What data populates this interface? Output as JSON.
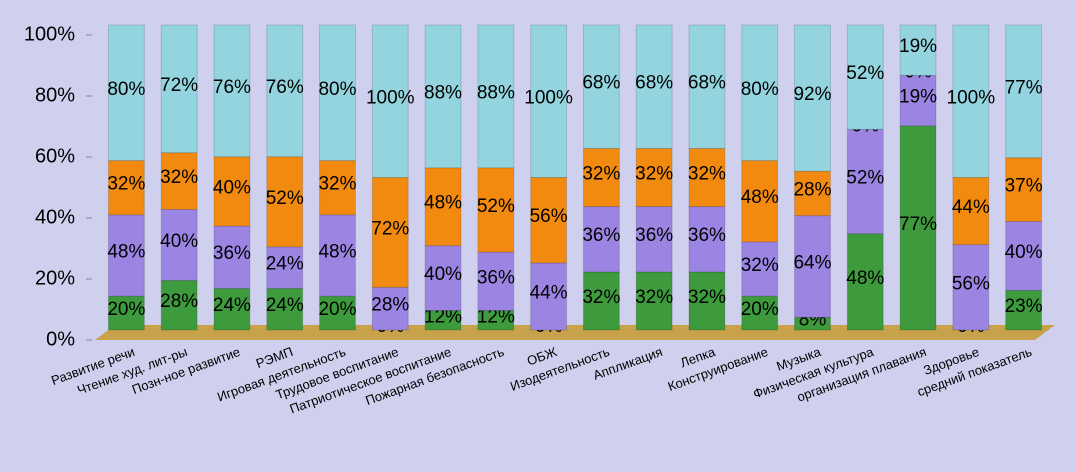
{
  "chart_data": {
    "type": "bar",
    "stacking": "percent",
    "categories": [
      "Развитие речи",
      "Чтение худ. лит-ры",
      "Позн-ное развитие",
      "РЭМП",
      "Игровая деятельность",
      "Трудовое воспитание",
      "Патриотическое воспитание",
      "Пожарная безопасность",
      "ОБЖ",
      "Изодеятельность",
      "Аппликация",
      "Лепка",
      "Конструирование",
      "Музыка",
      "Физическая культура",
      "организация плавания",
      "Здоровье",
      "средний показатель"
    ],
    "series": [
      {
        "color": "#3d9a3d",
        "values": [
          20,
          28,
          24,
          24,
          20,
          0,
          12,
          12,
          0,
          32,
          32,
          32,
          20,
          8,
          48,
          77,
          0,
          23
        ],
        "value_labels": [
          "20%",
          "28%",
          "24%",
          "24%",
          "20%",
          "0%",
          "12%",
          "12%",
          "0%",
          "32%",
          "32%",
          "32%",
          "20%",
          "8%",
          "48%",
          "77%",
          "0%",
          "23%"
        ]
      },
      {
        "color": "#9b84e2",
        "values": [
          48,
          40,
          36,
          24,
          48,
          28,
          40,
          36,
          44,
          36,
          36,
          36,
          32,
          64,
          52,
          19,
          56,
          40
        ],
        "value_labels": [
          "48%",
          "40%",
          "36%",
          "24%",
          "48%",
          "28%",
          "40%",
          "36%",
          "44%",
          "36%",
          "36%",
          "36%",
          "32%",
          "64%",
          "52%",
          "19%",
          "56%",
          "40%"
        ]
      },
      {
        "color": "#f28a10",
        "values": [
          32,
          32,
          40,
          52,
          32,
          72,
          48,
          52,
          56,
          32,
          32,
          32,
          48,
          28,
          0,
          0,
          44,
          37
        ],
        "value_labels": [
          "32%",
          "32%",
          "40%",
          "52%",
          "32%",
          "72%",
          "48%",
          "52%",
          "56%",
          "32%",
          "32%",
          "32%",
          "48%",
          "28%",
          "0%",
          "0%",
          "44%",
          "37%"
        ]
      },
      {
        "color": "#93d4df",
        "values": [
          80,
          72,
          76,
          76,
          80,
          100,
          88,
          88,
          100,
          68,
          68,
          68,
          80,
          92,
          52,
          19,
          100,
          77
        ],
        "value_labels": [
          "80%",
          "72%",
          "76%",
          "76%",
          "80%",
          "100%",
          "88%",
          "88%",
          "100%",
          "68%",
          "68%",
          "68%",
          "80%",
          "92%",
          "52%",
          "19%",
          "100%",
          "77%"
        ]
      }
    ],
    "ylim": [
      0,
      100
    ],
    "yticks": [
      {
        "value": 0,
        "label": "0%"
      },
      {
        "value": 20,
        "label": "20%"
      },
      {
        "value": 40,
        "label": "40%"
      },
      {
        "value": 60,
        "label": "60%"
      },
      {
        "value": 80,
        "label": "80%"
      },
      {
        "value": 100,
        "label": "100%"
      }
    ]
  }
}
